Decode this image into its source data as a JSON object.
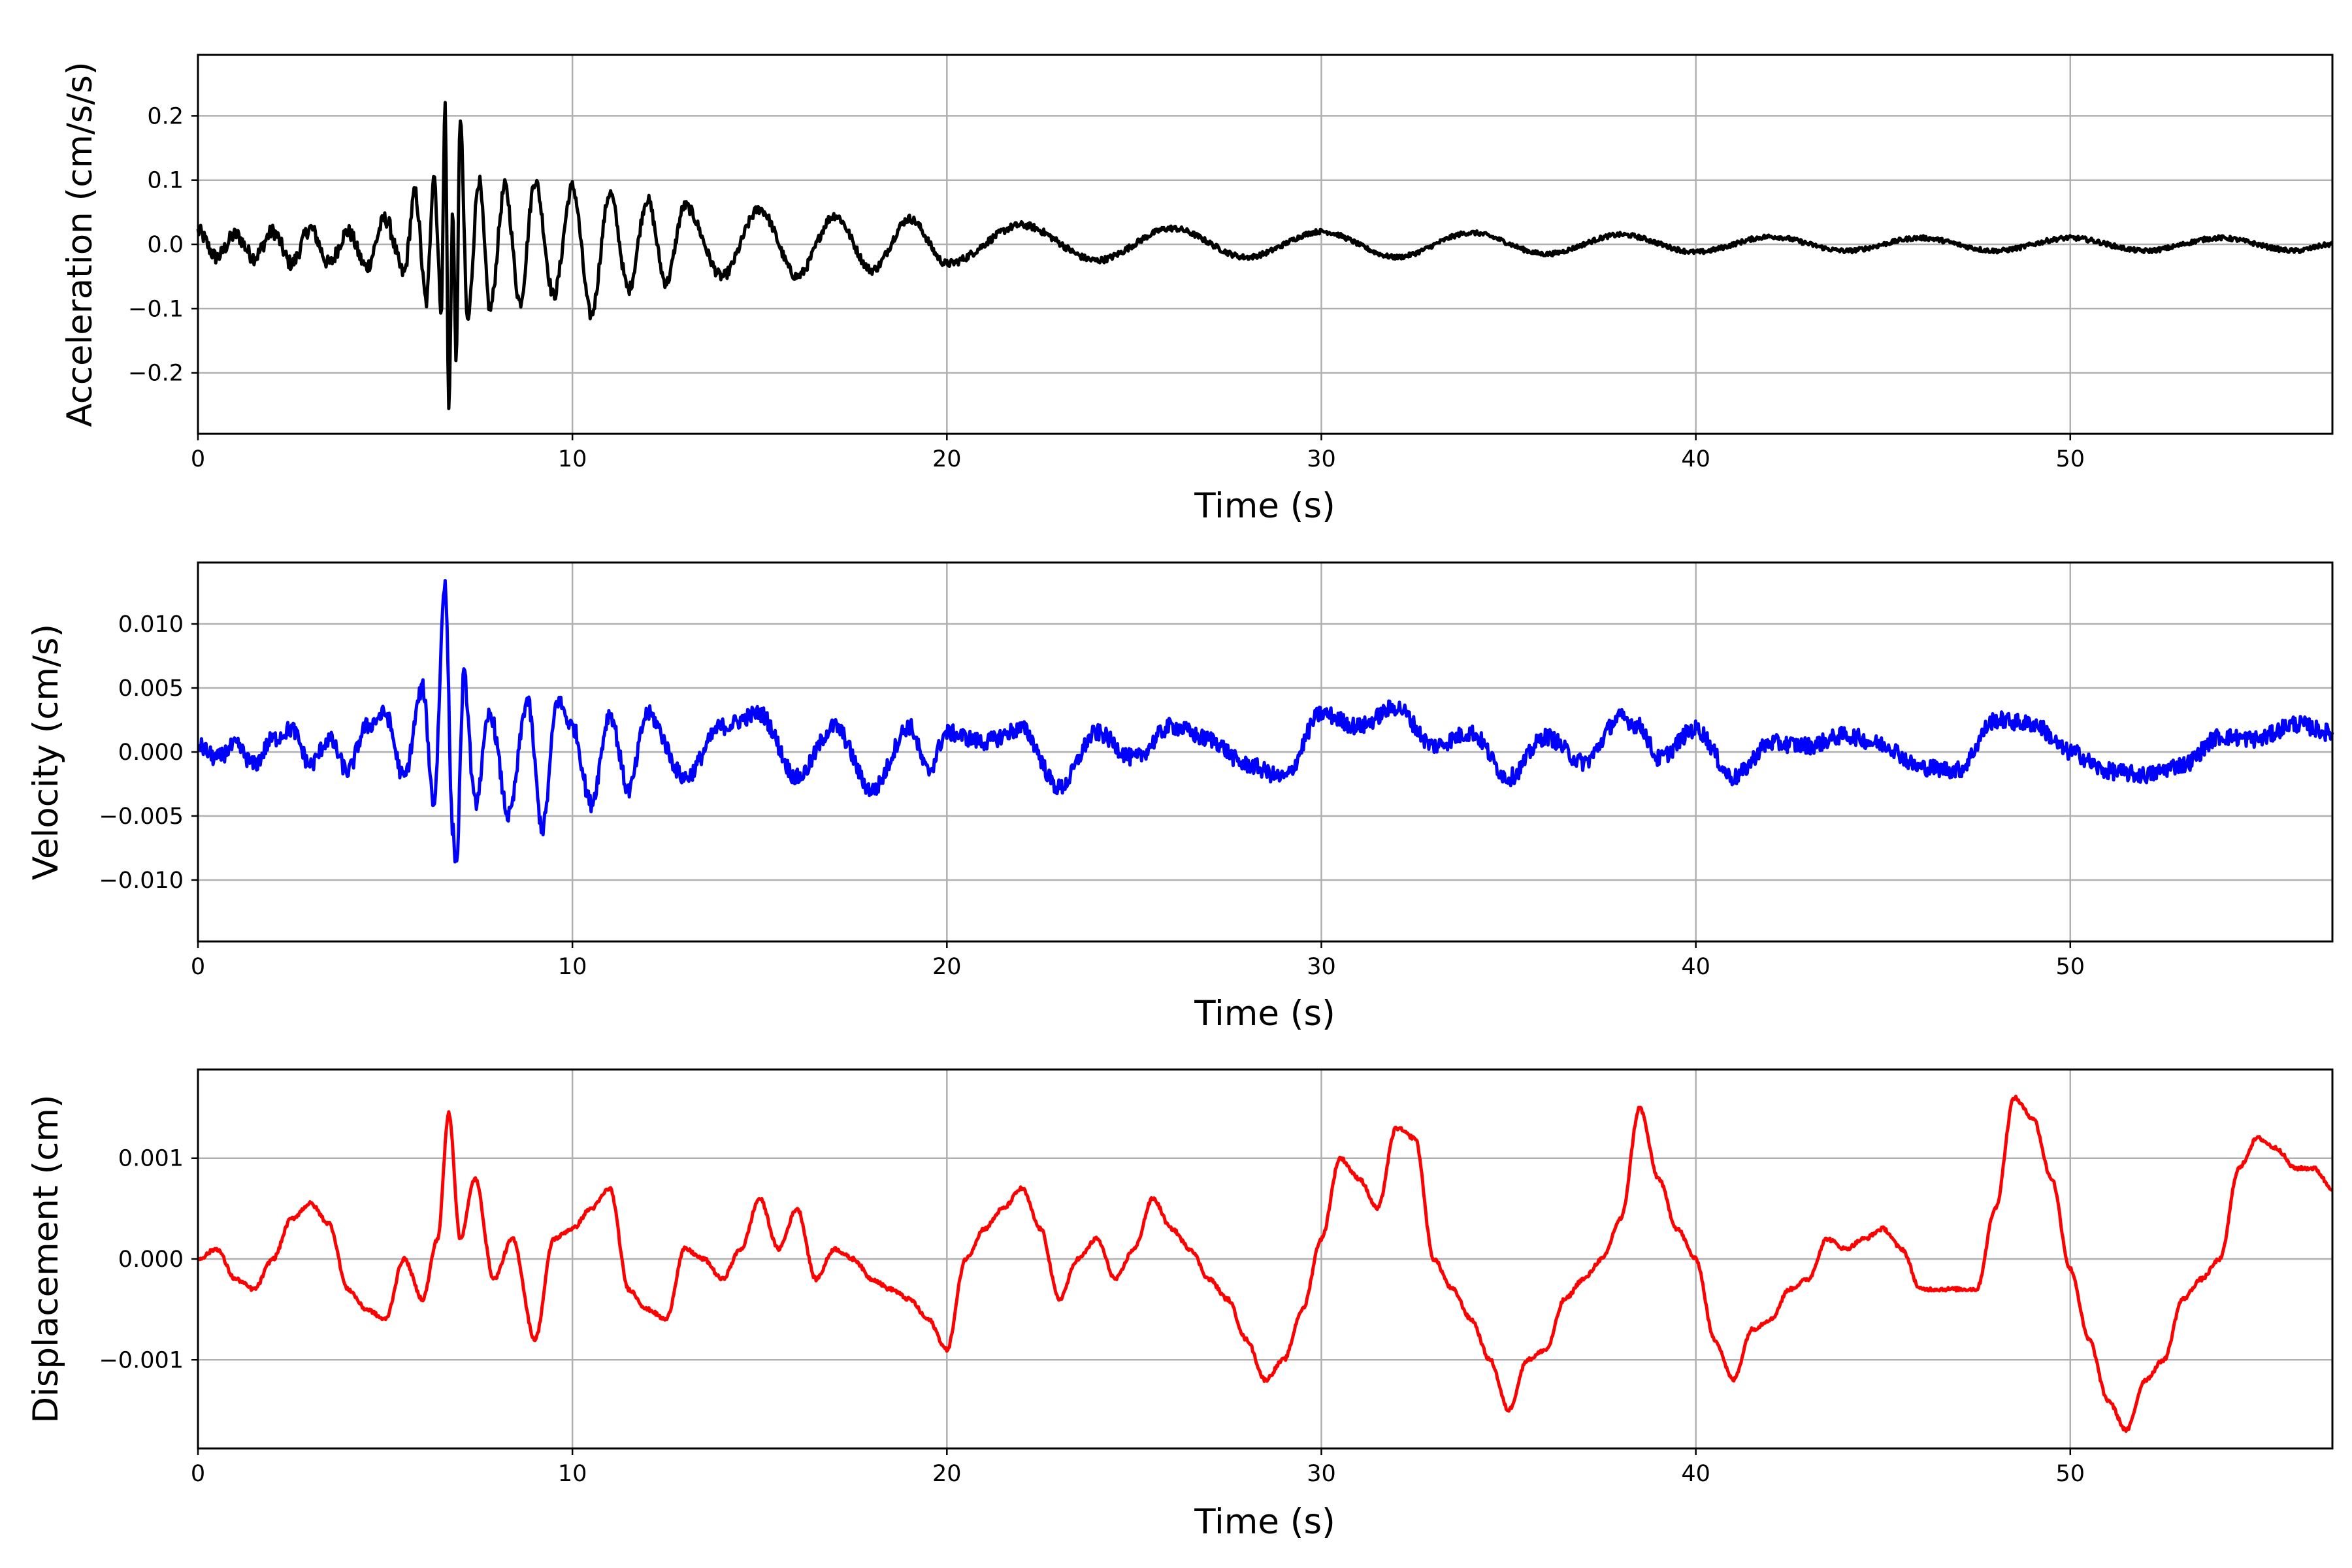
{
  "chart_data": [
    {
      "type": "line",
      "title": "",
      "xlabel": "Time (s)",
      "ylabel": "Acceleration (cm/s/s)",
      "xlim": [
        0,
        57
      ],
      "ylim": [
        -0.295,
        0.295
      ],
      "xticks": [
        0,
        10,
        20,
        30,
        40,
        50
      ],
      "yticks": [
        -0.2,
        -0.1,
        0.0,
        0.1,
        0.2
      ],
      "ytick_labels": [
        "−0.2",
        "−0.1",
        "0.0",
        "0.1",
        "0.2"
      ],
      "grid": true,
      "color": "#000000",
      "series": [
        {
          "x": [
            0,
            0.5,
            1,
            1.5,
            2,
            2.5,
            3,
            3.5,
            4,
            4.5,
            5,
            5.5,
            5.8,
            6.1,
            6.3,
            6.5,
            6.6,
            6.7,
            6.8,
            6.9,
            7.0,
            7.2,
            7.5,
            7.8,
            8.2,
            8.6,
            9.0,
            9.5,
            10.0,
            10.5,
            11,
            11.5,
            12,
            12.5,
            13,
            14,
            15,
            16,
            17,
            18,
            19,
            20,
            22,
            24,
            26,
            28,
            30,
            32,
            34,
            36,
            38,
            40,
            42,
            44,
            46,
            48,
            50,
            52,
            54,
            56,
            57
          ],
          "y": [
            0.02,
            -0.02,
            0.015,
            -0.02,
            0.02,
            -0.03,
            0.025,
            -0.03,
            0.02,
            -0.035,
            0.04,
            -0.045,
            0.08,
            -0.09,
            0.11,
            -0.1,
            0.22,
            -0.26,
            0.05,
            -0.18,
            0.2,
            -0.12,
            0.1,
            -0.1,
            0.09,
            -0.09,
            0.1,
            -0.08,
            0.09,
            -0.11,
            0.08,
            -0.07,
            0.07,
            -0.06,
            0.06,
            -0.05,
            0.055,
            -0.05,
            0.045,
            -0.04,
            0.04,
            -0.03,
            0.03,
            -0.025,
            0.025,
            -0.02,
            0.02,
            -0.02,
            0.018,
            -0.015,
            0.015,
            -0.012,
            0.012,
            -0.01,
            0.01,
            -0.01,
            0.01,
            -0.01,
            0.01,
            -0.01,
            0.0
          ]
        }
      ]
    },
    {
      "type": "line",
      "title": "",
      "xlabel": "Time (s)",
      "ylabel": "Velocity (cm/s)",
      "xlim": [
        0,
        57
      ],
      "ylim": [
        -0.0148,
        0.0148
      ],
      "xticks": [
        0,
        10,
        20,
        30,
        40,
        50
      ],
      "yticks": [
        -0.01,
        -0.005,
        0.0,
        0.005,
        0.01
      ],
      "ytick_labels": [
        "−0.010",
        "−0.005",
        "0.000",
        "0.005",
        "0.010"
      ],
      "grid": true,
      "color": "#0000ff",
      "series": [
        {
          "x": [
            0,
            0.5,
            1,
            1.5,
            2,
            2.5,
            3,
            3.5,
            4,
            4.5,
            5,
            5.5,
            6,
            6.3,
            6.6,
            6.8,
            6.9,
            7.1,
            7.4,
            7.8,
            8.3,
            8.8,
            9.2,
            9.6,
            10,
            10.5,
            11,
            11.5,
            12,
            13,
            14,
            15,
            16,
            17,
            18,
            19,
            19.5,
            20,
            21,
            22,
            23,
            24,
            25,
            26,
            27,
            28,
            29,
            30,
            31,
            32,
            33,
            34,
            35,
            36,
            37,
            38,
            38.5,
            39,
            40,
            41,
            42,
            43,
            44,
            45,
            46,
            47,
            48,
            49,
            50,
            51,
            52,
            53,
            54,
            55,
            56,
            57
          ],
          "y": [
            0.0005,
            -0.0005,
            0.0005,
            -0.001,
            0.001,
            0.0018,
            -0.001,
            0.001,
            -0.0015,
            0.002,
            0.003,
            -0.002,
            0.005,
            -0.004,
            0.0133,
            -0.006,
            -0.0088,
            0.006,
            -0.004,
            0.003,
            -0.005,
            0.004,
            -0.006,
            0.004,
            0.002,
            -0.004,
            0.003,
            -0.003,
            0.003,
            -0.002,
            0.002,
            0.003,
            -0.002,
            0.002,
            -0.003,
            0.002,
            -0.0015,
            0.0015,
            0.0008,
            0.0018,
            -0.0028,
            0.0015,
            -0.0005,
            0.002,
            0.001,
            -0.001,
            -0.002,
            0.003,
            0.002,
            0.0035,
            0.0005,
            0.0015,
            -0.002,
            0.0012,
            -0.0008,
            0.0027,
            0.002,
            -0.0005,
            0.0018,
            -0.002,
            0.0007,
            0.0005,
            0.0013,
            0.0006,
            -0.0012,
            -0.0014,
            0.0025,
            0.0022,
            0.0,
            -0.0015,
            -0.0018,
            -0.001,
            0.0012,
            0.001,
            0.0022,
            0.0015
          ]
        }
      ]
    },
    {
      "type": "line",
      "title": "",
      "xlabel": "Time (s)",
      "ylabel": "Displacement (cm)",
      "xlim": [
        0,
        57
      ],
      "ylim": [
        -0.00188,
        0.00188
      ],
      "xticks": [
        0,
        10,
        20,
        30,
        40,
        50
      ],
      "yticks": [
        -0.001,
        0.0,
        0.001
      ],
      "ytick_labels": [
        "−0.001",
        "0.000",
        "0.001"
      ],
      "grid": true,
      "color": "#ff0000",
      "series": [
        {
          "x": [
            0,
            0.5,
            1,
            1.5,
            2,
            2.5,
            3,
            3.5,
            4,
            4.5,
            5,
            5.5,
            6,
            6.4,
            6.7,
            7,
            7.4,
            7.9,
            8.4,
            9,
            9.5,
            10,
            10.5,
            11,
            11.5,
            12,
            12.5,
            13,
            13.5,
            14,
            14.5,
            15,
            15.5,
            16,
            16.5,
            17,
            17.5,
            18,
            18.5,
            19,
            19.5,
            20,
            20.5,
            21,
            21.5,
            22,
            22.5,
            23,
            23.5,
            24,
            24.5,
            25,
            25.5,
            26,
            26.5,
            27,
            27.5,
            28,
            28.5,
            29,
            29.5,
            30,
            30.5,
            31,
            31.5,
            32,
            32.5,
            33,
            33.5,
            34,
            34.5,
            35,
            35.5,
            36,
            36.5,
            37,
            37.5,
            38,
            38.5,
            39,
            39.5,
            40,
            40.5,
            41,
            41.5,
            42,
            42.5,
            43,
            43.5,
            44,
            44.5,
            45,
            45.5,
            46,
            46.5,
            47,
            47.5,
            48,
            48.5,
            49,
            49.5,
            50,
            50.5,
            51,
            51.5,
            52,
            52.5,
            53,
            53.5,
            54,
            54.5,
            55,
            55.5,
            56,
            56.5,
            57
          ],
          "y": [
            0.0,
            0.0001,
            -0.0002,
            -0.0003,
            0.0,
            0.0004,
            0.00055,
            0.00035,
            -0.0003,
            -0.0005,
            -0.0006,
            0.0,
            -0.0004,
            0.0002,
            0.00145,
            0.0002,
            0.0008,
            -0.0002,
            0.0002,
            -0.0008,
            0.0002,
            0.0003,
            0.0005,
            0.0007,
            -0.0003,
            -0.0005,
            -0.0006,
            0.0001,
            0.0,
            -0.0002,
            0.0001,
            0.0006,
            0.0001,
            0.0005,
            -0.0002,
            0.0001,
            0.0,
            -0.0002,
            -0.0003,
            -0.0004,
            -0.0006,
            -0.0009,
            0.0,
            0.0003,
            0.0005,
            0.0007,
            0.0003,
            -0.0004,
            0.0,
            0.0002,
            -0.0002,
            0.0001,
            0.0006,
            0.0003,
            0.0001,
            -0.0002,
            -0.0004,
            -0.0008,
            -0.0012,
            -0.001,
            -0.0005,
            0.0002,
            0.001,
            0.0008,
            0.0005,
            0.0013,
            0.0012,
            0.0,
            -0.0003,
            -0.0006,
            -0.001,
            -0.0015,
            -0.001,
            -0.0009,
            -0.0004,
            -0.0002,
            0.0,
            0.0004,
            0.0015,
            0.0008,
            0.0003,
            0.0,
            -0.0008,
            -0.0012,
            -0.0007,
            -0.0006,
            -0.0003,
            -0.0002,
            0.0002,
            0.0001,
            0.0002,
            0.0003,
            0.0001,
            -0.0003,
            -0.0003,
            -0.0003,
            -0.0003,
            0.0005,
            0.0016,
            0.0014,
            0.0008,
            -0.0001,
            -0.0008,
            -0.0014,
            -0.0017,
            -0.0012,
            -0.001,
            -0.0004,
            -0.0002,
            0.0,
            0.0009,
            0.0012,
            0.0011,
            0.0009,
            0.0009,
            0.0007
          ]
        }
      ]
    }
  ]
}
